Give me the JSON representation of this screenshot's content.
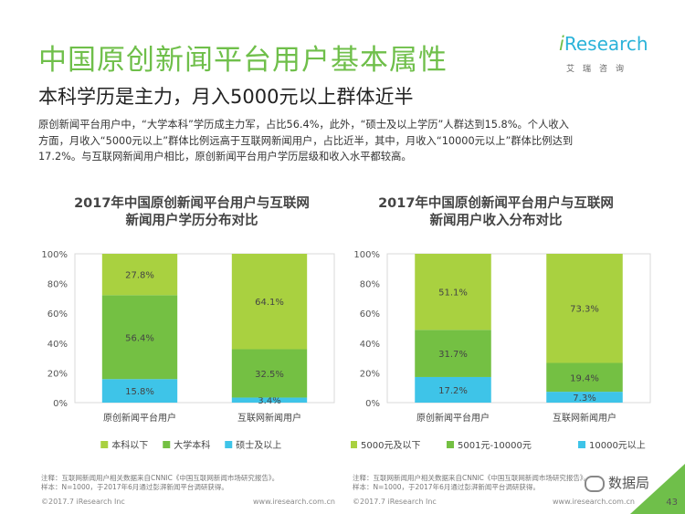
{
  "header": {
    "title": "中国原创新闻平台用户基本属性",
    "subtitle": "本科学历是主力，月入5000元以上群体近半",
    "logo_i": "i",
    "logo_rest": "Research",
    "logo_sub": "艾瑞咨询",
    "body_lines": [
      "原创新闻平台用户中，“大学本科”学历成主力军，占比56.4%，此外，“硕士及以上学历”人群达到15.8%。个人收入",
      "方面，月收入“5000元以上”群体比例远高于互联网新闻用户，占比近半，其中，月收入“10000元以上”群体比例达到",
      "17.2%。与互联网新闻用户相比，原创新闻平台用户学历层级和收入水平都较高。"
    ]
  },
  "chart_data": [
    {
      "type": "bar",
      "stacked": true,
      "title": "2017年中国原创新闻平台用户与互联网新闻用户学历分布对比",
      "title_lines": [
        "2017年中国原创新闻平台用户与互联网",
        "新闻用户学历分布对比"
      ],
      "categories": [
        "原创新闻平台用户",
        "互联网新闻用户"
      ],
      "series": [
        {
          "name": "硕士及以上",
          "values": [
            15.8,
            3.4
          ],
          "labels": [
            "15.8%",
            "3.4%"
          ],
          "color": "#3ec4e8"
        },
        {
          "name": "大学本科",
          "values": [
            56.4,
            32.5
          ],
          "labels": [
            "56.4%",
            "32.5%"
          ],
          "color": "#74c043"
        },
        {
          "name": "本科以下",
          "values": [
            27.8,
            64.1
          ],
          "labels": [
            "27.8%",
            "64.1%"
          ],
          "color": "#a9d140"
        }
      ],
      "legend_order": [
        "本科以下",
        "大学本科",
        "硕士及以上"
      ],
      "yticks": [
        "0%",
        "20%",
        "40%",
        "60%",
        "80%",
        "100%"
      ],
      "ylim": [
        0,
        100
      ],
      "note_lines": [
        "注释：互联网新闻用户相关数据来自CNNIC《中国互联网新闻市场研究报告》。",
        "样本：N=1000，于2017年6月通过彭湃新闻平台调研获得。"
      ],
      "footer_left": "©2017.7 iResearch Inc",
      "footer_right": "www.iresearch.com.cn"
    },
    {
      "type": "bar",
      "stacked": true,
      "title": "2017年中国原创新闻平台用户与互联网新闻用户收入分布对比",
      "title_lines": [
        "2017年中国原创新闻平台用户与互联网",
        "新闻用户收入分布对比"
      ],
      "categories": [
        "原创新闻平台用户",
        "互联网新闻用户"
      ],
      "series": [
        {
          "name": "10000元以上",
          "values": [
            17.2,
            7.3
          ],
          "labels": [
            "17.2%",
            "7.3%"
          ],
          "color": "#3ec4e8"
        },
        {
          "name": "5001元-10000元",
          "values": [
            31.7,
            19.4
          ],
          "labels": [
            "31.7%",
            "19.4%"
          ],
          "color": "#74c043"
        },
        {
          "name": "5000元及以下",
          "values": [
            51.1,
            73.3
          ],
          "labels": [
            "51.1%",
            "73.3%"
          ],
          "color": "#a9d140"
        }
      ],
      "legend_order": [
        "5000元及以下",
        "5001元-10000元",
        "10000元以上"
      ],
      "yticks": [
        "0%",
        "20%",
        "40%",
        "60%",
        "80%",
        "100%"
      ],
      "ylim": [
        0,
        100
      ],
      "note_lines": [
        "注释：互联网新闻用户相关数据来自CNNIC《中国互联网新闻市场研究报告》。",
        "样本：N=1000，于2017年6月通过彭湃新闻平台调研获得。"
      ],
      "footer_left": "©2017.7 iResearch Inc",
      "footer_right": "www.iresearch.com.cn"
    }
  ],
  "page": {
    "number": "43",
    "watermark": "数据局"
  }
}
